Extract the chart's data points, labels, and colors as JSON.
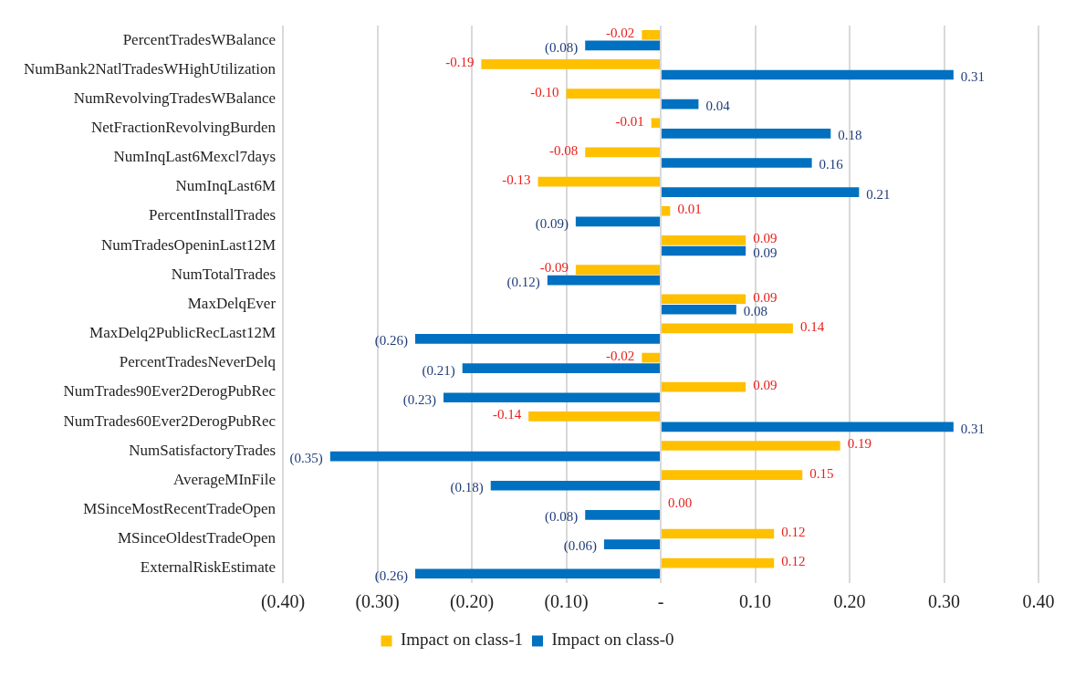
{
  "chart_data": {
    "type": "bar",
    "orientation": "horizontal",
    "categories": [
      "PercentTradesWBalance",
      "NumBank2NatlTradesWHighUtilization",
      "NumRevolvingTradesWBalance",
      "NetFractionRevolvingBurden",
      "NumInqLast6Mexcl7days",
      "NumInqLast6M",
      "PercentInstallTrades",
      "NumTradesOpeninLast12M",
      "NumTotalTrades",
      "MaxDelqEver",
      "MaxDelq2PublicRecLast12M",
      "PercentTradesNeverDelq",
      "NumTrades90Ever2DerogPubRec",
      "NumTrades60Ever2DerogPubRec",
      "NumSatisfactoryTrades",
      "AverageMInFile",
      "MSinceMostRecentTradeOpen",
      "MSinceOldestTradeOpen",
      "ExternalRiskEstimate"
    ],
    "series": [
      {
        "name": "Impact on class-1",
        "color": "#ffc000",
        "values": [
          -0.02,
          -0.19,
          -0.1,
          -0.01,
          -0.08,
          -0.13,
          0.01,
          0.09,
          -0.09,
          0.09,
          0.14,
          -0.02,
          0.09,
          -0.14,
          0.19,
          0.15,
          0.0,
          0.12,
          0.12
        ],
        "value_labels": [
          "-0.02",
          "-0.19",
          "-0.10",
          "-0.01",
          "-0.08",
          "-0.13",
          "0.01",
          "0.09",
          "-0.09",
          "0.09",
          "0.14",
          "-0.02",
          "0.09",
          "-0.14",
          "0.19",
          "0.15",
          "0.00",
          "0.12",
          "0.12"
        ]
      },
      {
        "name": "Impact on class-0",
        "color": "#0070c0",
        "values": [
          -0.08,
          0.31,
          0.04,
          0.18,
          0.16,
          0.21,
          -0.09,
          0.09,
          -0.12,
          0.08,
          -0.26,
          -0.21,
          -0.23,
          0.31,
          -0.35,
          -0.18,
          -0.08,
          -0.06,
          -0.26
        ],
        "value_labels": [
          "(0.08)",
          "0.31",
          "0.04",
          "0.18",
          "0.16",
          "0.21",
          "(0.09)",
          "0.09",
          "(0.12)",
          "0.08",
          "(0.26)",
          "(0.21)",
          "(0.23)",
          "0.31",
          "(0.35)",
          "(0.18)",
          "(0.08)",
          "(0.06)",
          "(0.26)"
        ]
      }
    ],
    "xlim": [
      -0.4,
      0.4
    ],
    "xticks": [
      {
        "value": -0.4,
        "label": "(0.40)"
      },
      {
        "value": -0.3,
        "label": "(0.30)"
      },
      {
        "value": -0.2,
        "label": "(0.20)"
      },
      {
        "value": -0.1,
        "label": "(0.10)"
      },
      {
        "value": 0,
        "label": "-"
      },
      {
        "value": 0.1,
        "label": "0.10"
      },
      {
        "value": 0.2,
        "label": "0.20"
      },
      {
        "value": 0.3,
        "label": "0.30"
      },
      {
        "value": 0.4,
        "label": "0.40"
      }
    ],
    "grid": "x",
    "legend": "bottom"
  }
}
